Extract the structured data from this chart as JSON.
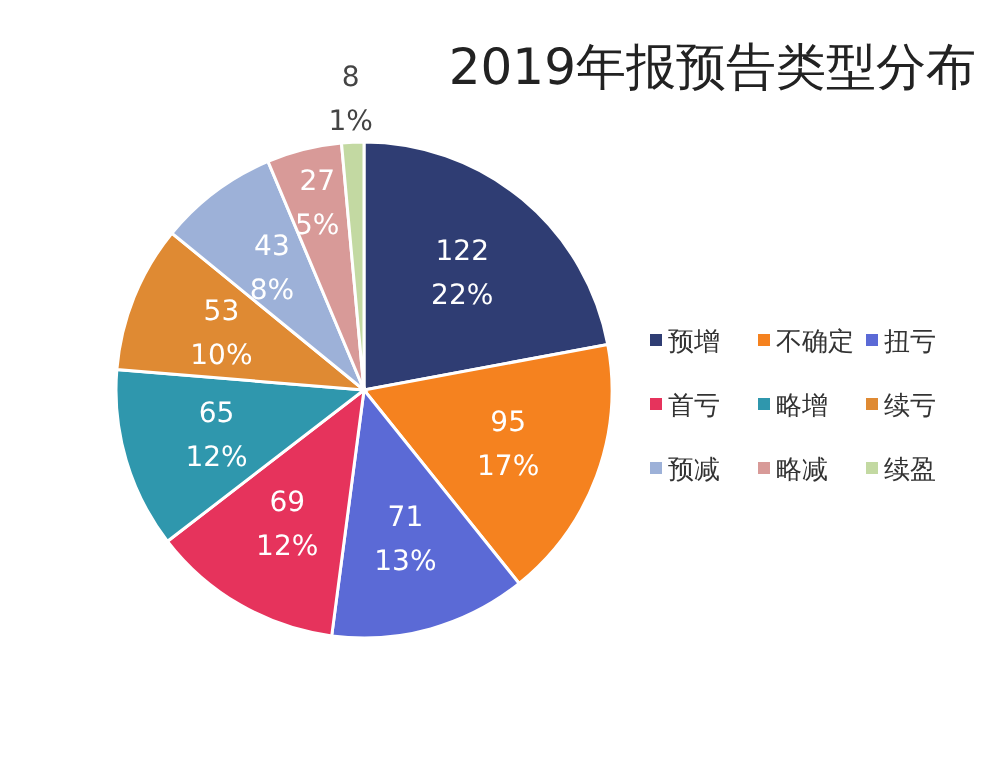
{
  "chart_data": {
    "type": "pie",
    "title": "2019年报预告类型分布",
    "categories": [
      "预增",
      "不确定",
      "扭亏",
      "首亏",
      "略增",
      "续亏",
      "预减",
      "略减",
      "续盈"
    ],
    "values": [
      122,
      95,
      71,
      69,
      65,
      53,
      43,
      27,
      8
    ],
    "colors": [
      "#2f3d73",
      "#f5821f",
      "#5b6ad6",
      "#e6335c",
      "#2f97ad",
      "#df8a33",
      "#9db1d8",
      "#d89a98",
      "#c3d9a2"
    ],
    "value_labels": [
      "122\n22%",
      "95\n17%",
      "71\n13%",
      "69\n12%",
      "65\n12%",
      "53\n10%",
      "43\n8%",
      "27\n5%",
      "8\n1%"
    ],
    "legend": "right"
  }
}
